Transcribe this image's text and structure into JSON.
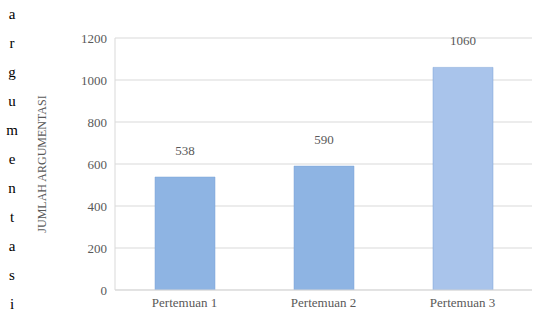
{
  "chart_data": {
    "type": "bar",
    "categories": [
      "Pertemuan 1",
      "Pertemuan 2",
      "Pertemuan 3"
    ],
    "values": [
      538,
      590,
      1060
    ],
    "colors": [
      "#8eb4e3",
      "#8eb4e3",
      "#a9c4eb"
    ],
    "y_label": "JUMLAH ARGUMENTASI",
    "ylim": [
      0,
      1200
    ],
    "yticks": [
      0,
      200,
      400,
      600,
      800,
      1000,
      1200
    ],
    "grid": true,
    "data_labels": true,
    "annotations": [
      "argumentasi"
    ]
  }
}
